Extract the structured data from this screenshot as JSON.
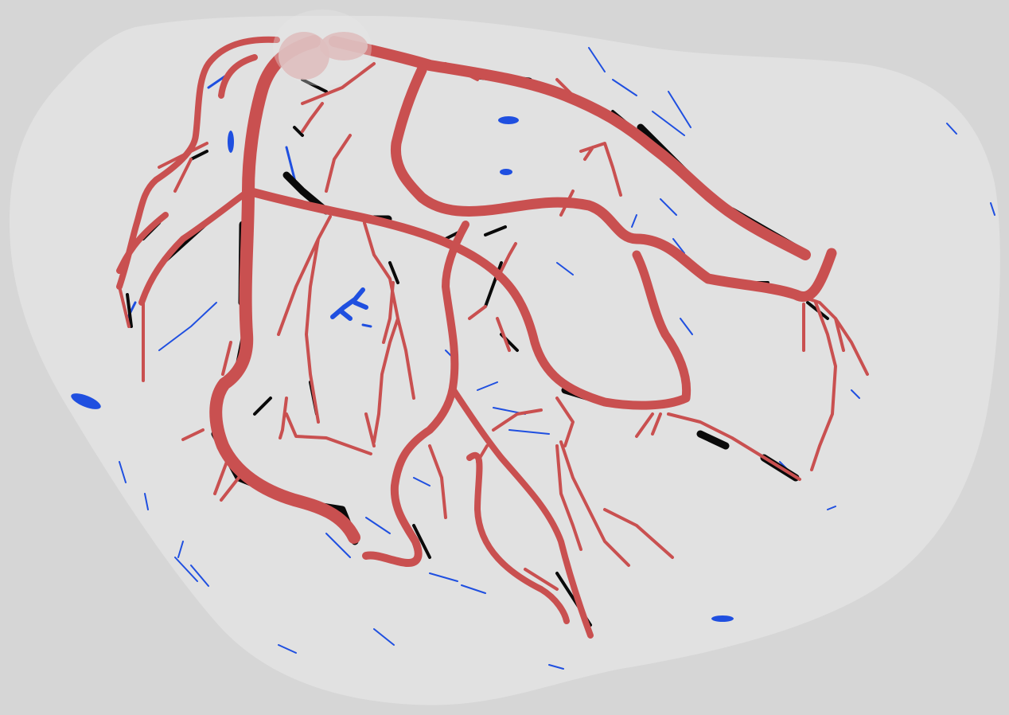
{
  "image": {
    "subject": "coronary-vessel-segmentation-mask",
    "colors": {
      "background": "#d6d6d6",
      "heart_region": "#e1e1e1",
      "artery": "#c95050",
      "vein": "#1f4fe0",
      "shadow": "#0a0a0a",
      "aortic_root": "#d9a8a8"
    },
    "legend_classes": [
      "heart-region",
      "arteries",
      "veins",
      "dark-vessel-segments",
      "aortic-root"
    ]
  }
}
